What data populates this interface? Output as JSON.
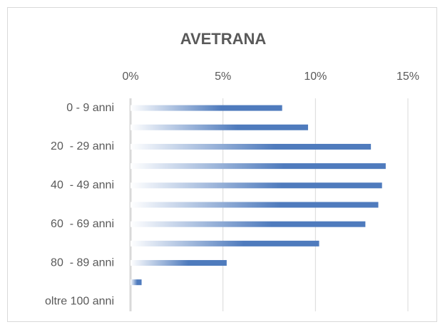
{
  "chart_data": {
    "type": "bar",
    "orientation": "horizontal",
    "title": "AVETRANA",
    "categories": [
      "0 - 9 anni",
      null,
      "20  - 29 anni",
      null,
      "40  - 49 anni",
      null,
      "60  - 69 anni",
      null,
      "80  - 89 anni",
      null,
      "oltre 100 anni"
    ],
    "values": [
      8.2,
      9.6,
      13.0,
      13.8,
      13.6,
      13.4,
      12.7,
      10.2,
      5.2,
      0.6,
      0
    ],
    "color": "#4f7bbd",
    "xlim": [
      0,
      15
    ],
    "xticks": [
      {
        "value": 0,
        "label": "0%"
      },
      {
        "value": 5,
        "label": "5%"
      },
      {
        "value": 10,
        "label": "10%"
      },
      {
        "value": 15,
        "label": "15%"
      }
    ],
    "grid": true
  }
}
